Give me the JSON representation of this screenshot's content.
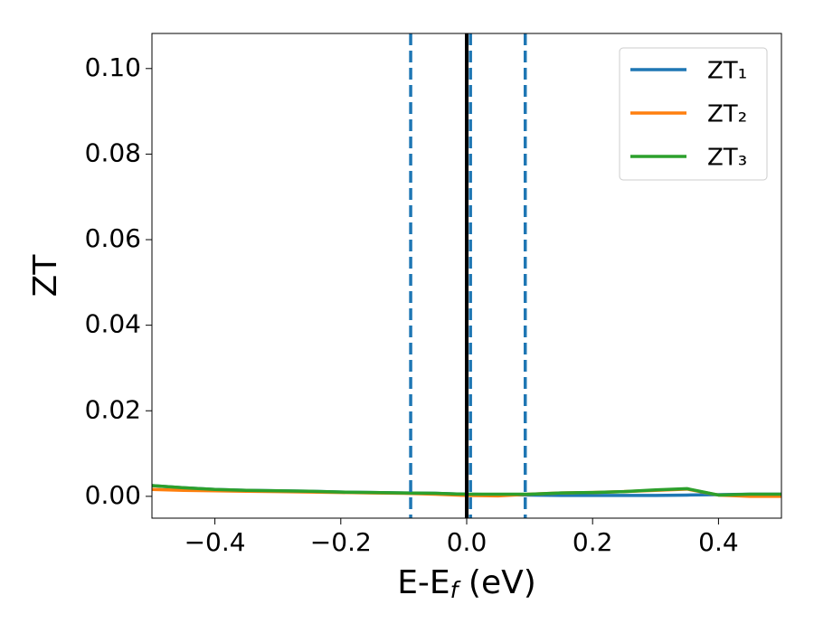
{
  "chart_data": {
    "type": "line",
    "xlabel": {
      "text": "E-E",
      "sub": "f",
      "after": " (eV)"
    },
    "ylabel": "ZT",
    "x": [
      -0.5,
      -0.45,
      -0.4,
      -0.35,
      -0.3,
      -0.25,
      -0.2,
      -0.15,
      -0.1,
      -0.05,
      0,
      0.05,
      0.1,
      0.15,
      0.2,
      0.25,
      0.3,
      0.35,
      0.4,
      0.45,
      0.5
    ],
    "series": [
      {
        "name": "ZT₁",
        "color": "#1f77b4",
        "values": [
          0.0025,
          0.002,
          0.0016,
          0.0014,
          0.0013,
          0.0012,
          0.001,
          0.0009,
          0.0008,
          0.0007,
          0.0005,
          0.0004,
          0.0003,
          0.0002,
          0.0002,
          0.0002,
          0.0002,
          0.0003,
          0.0004,
          0.0005,
          0.0005
        ]
      },
      {
        "name": "ZT₂",
        "color": "#ff7f0e",
        "values": [
          0.0016,
          0.0014,
          0.0013,
          0.0012,
          0.0011,
          0.001,
          0.0009,
          0.0008,
          0.0007,
          0.0005,
          0.0002,
          0.0001,
          0.0005,
          0.0008,
          0.0009,
          0.0011,
          0.0014,
          0.0017,
          0.0003,
          0,
          0
        ]
      },
      {
        "name": "ZT₃",
        "color": "#2ca02c",
        "values": [
          0.0025,
          0.002,
          0.0016,
          0.0014,
          0.0013,
          0.0012,
          0.001,
          0.0009,
          0.0008,
          0.0007,
          0.0005,
          0.0005,
          0.0005,
          0.0008,
          0.0009,
          0.0011,
          0.0015,
          0.0018,
          0.0003,
          0.0005,
          0.0005
        ]
      }
    ],
    "vlines": [
      {
        "x": -0.089,
        "color": "#1f77b4",
        "style": "dashed"
      },
      {
        "x": 0.006,
        "color": "#1f77b4",
        "style": "dashed"
      },
      {
        "x": 0.093,
        "color": "#1f77b4",
        "style": "dashed"
      },
      {
        "x": 0,
        "color": "#000000",
        "style": "solid"
      }
    ],
    "xlim": [
      -0.5,
      0.5
    ],
    "ylim": [
      -0.0051,
      0.1082
    ],
    "xticks": [
      {
        "value": -0.4,
        "label": "−0.4"
      },
      {
        "value": -0.2,
        "label": "−0.2"
      },
      {
        "value": 0,
        "label": "0.0"
      },
      {
        "value": 0.2,
        "label": "0.2"
      },
      {
        "value": 0.4,
        "label": "0.4"
      }
    ],
    "yticks": [
      {
        "value": 0,
        "label": "0.00"
      },
      {
        "value": 0.02,
        "label": "0.02"
      },
      {
        "value": 0.04,
        "label": "0.04"
      },
      {
        "value": 0.06,
        "label": "0.06"
      },
      {
        "value": 0.08,
        "label": "0.08"
      },
      {
        "value": 0.1,
        "label": "0.10"
      }
    ],
    "legend": "upper right"
  }
}
